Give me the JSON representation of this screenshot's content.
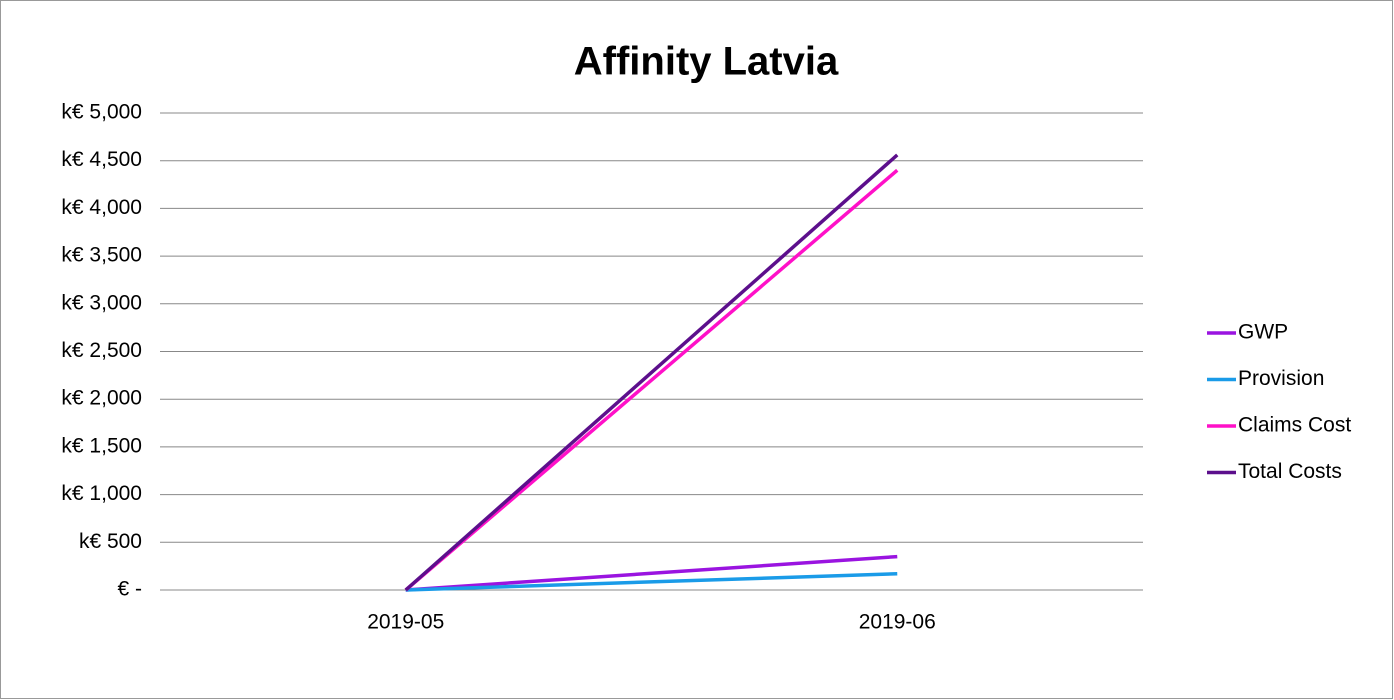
{
  "chart_data": {
    "type": "line",
    "title": "Affinity Latvia",
    "categories": [
      "2019-05",
      "2019-06"
    ],
    "series": [
      {
        "name": "GWP",
        "color": "#9a14e0",
        "values": [
          0,
          350
        ]
      },
      {
        "name": "Provision",
        "color": "#1a9be8",
        "values": [
          0,
          170
        ]
      },
      {
        "name": "Claims Cost",
        "color": "#ff10c8",
        "values": [
          0,
          4400
        ]
      },
      {
        "name": "Total Costs",
        "color": "#5c0f8c",
        "values": [
          0,
          4560
        ]
      }
    ],
    "ylim": [
      0,
      5000
    ],
    "yticks": [
      {
        "value": 0,
        "label": "€ -"
      },
      {
        "value": 500,
        "label": "k€ 500"
      },
      {
        "value": 1000,
        "label": "k€ 1,000"
      },
      {
        "value": 1500,
        "label": "k€ 1,500"
      },
      {
        "value": 2000,
        "label": "k€ 2,000"
      },
      {
        "value": 2500,
        "label": "k€ 2,500"
      },
      {
        "value": 3000,
        "label": "k€ 3,000"
      },
      {
        "value": 3500,
        "label": "k€ 3,500"
      },
      {
        "value": 4000,
        "label": "k€ 4,000"
      },
      {
        "value": 4500,
        "label": "k€ 4,500"
      },
      {
        "value": 5000,
        "label": "k€ 5,000"
      }
    ],
    "grid": true,
    "legend": "right"
  }
}
